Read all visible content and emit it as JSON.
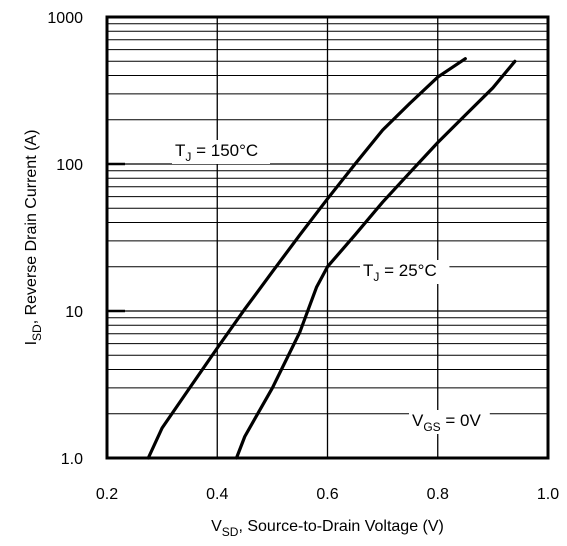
{
  "chart_data": {
    "type": "line",
    "title": "",
    "xlabel": {
      "main": "V",
      "sub": "SD",
      "rest": ", Source-to-Drain Voltage (V)"
    },
    "ylabel": {
      "main": "I",
      "sub": "SD",
      "rest": ", Reverse Drain Current (A)"
    },
    "xlim": [
      0.2,
      1.0
    ],
    "ylim": [
      1.0,
      1000
    ],
    "y_scale": "log",
    "grid": true,
    "x_ticks": [
      "0.2",
      "0.4",
      "0.6",
      "0.8",
      "1.0"
    ],
    "y_ticks": [
      "1.0",
      "10",
      "100",
      "1000"
    ],
    "series": [
      {
        "name": "TJ = 150°C",
        "x": [
          0.275,
          0.3,
          0.35,
          0.4,
          0.45,
          0.5,
          0.55,
          0.6,
          0.65,
          0.7,
          0.75,
          0.8,
          0.85
        ],
        "y": [
          1.0,
          1.6,
          3.0,
          5.6,
          10.3,
          18.5,
          33,
          58,
          100,
          170,
          260,
          390,
          520
        ]
      },
      {
        "name": "TJ = 25°C",
        "x": [
          0.435,
          0.45,
          0.5,
          0.55,
          0.58,
          0.6,
          0.65,
          0.7,
          0.75,
          0.8,
          0.85,
          0.9,
          0.94
        ],
        "y": [
          1.0,
          1.4,
          3.0,
          7.2,
          14.5,
          20,
          33,
          55,
          88,
          140,
          215,
          330,
          500
        ]
      }
    ],
    "annotations": [
      {
        "prefix": "T",
        "sub": "J",
        "rest": " = 150°C"
      },
      {
        "prefix": "T",
        "sub": "J",
        "rest": " = 25°C"
      },
      {
        "prefix": "V",
        "sub": "GS",
        "rest": " = 0V"
      }
    ]
  }
}
